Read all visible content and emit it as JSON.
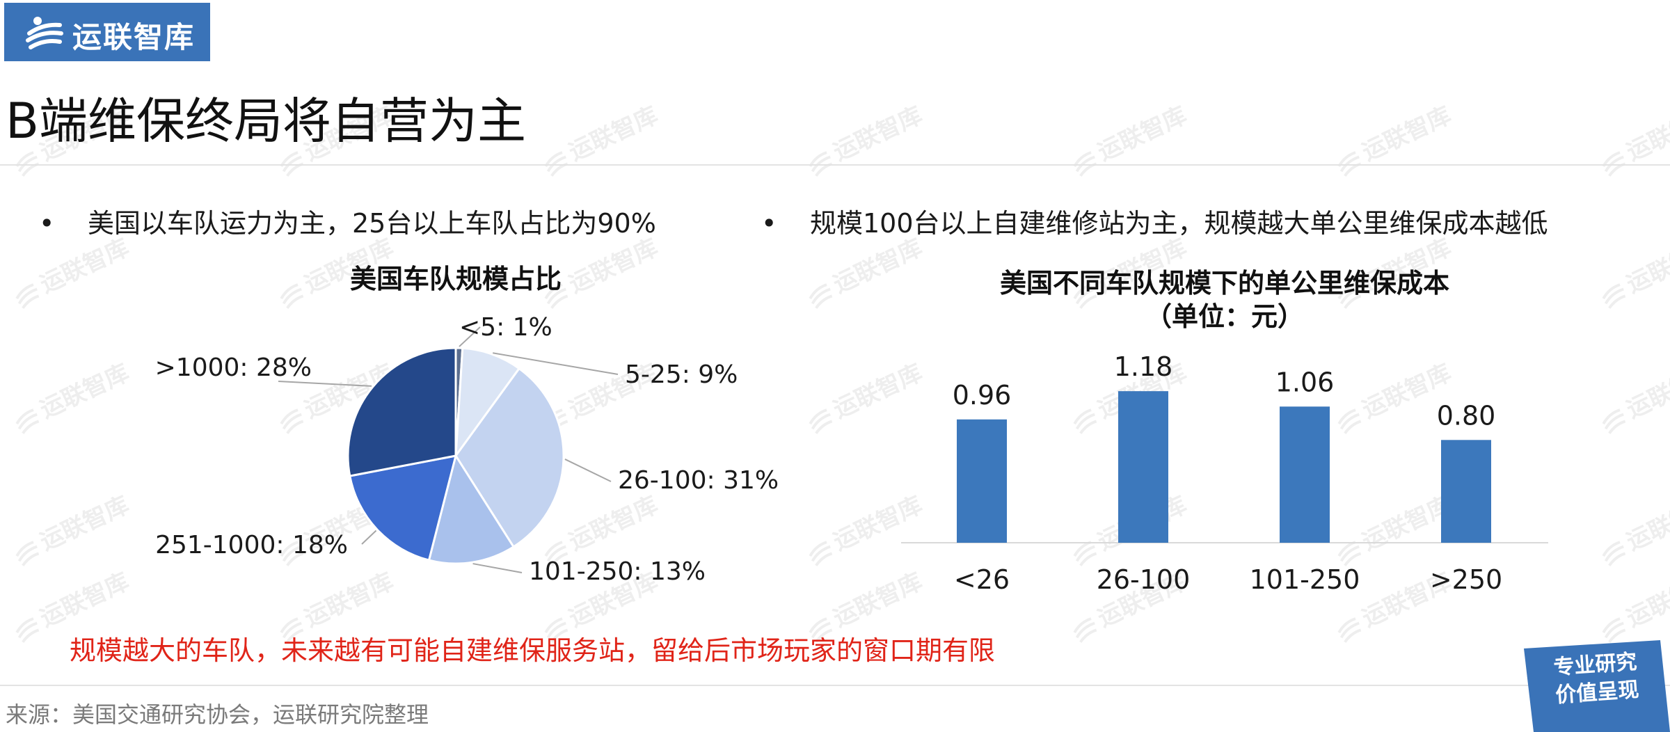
{
  "brand": {
    "name": "运联智库",
    "bg_color": "#3a73b8",
    "icon": "swirl-logo-icon"
  },
  "page": {
    "title": "B端维保终局将自营为主"
  },
  "left": {
    "bullet": "美国以车队运力为主，25台以上车队占比为90%"
  },
  "right": {
    "bullet": "规模100台以上自建维修站为主，规模越大单公里维保成本越低"
  },
  "chart_data": [
    {
      "type": "pie",
      "title": "美国车队规模占比",
      "slices": [
        {
          "label": "<5",
          "value": 1,
          "label_text": "<5: 1%",
          "color": "#5b6e8f"
        },
        {
          "label": "5-25",
          "value": 9,
          "label_text": "5-25: 9%",
          "color": "#dbe5f5"
        },
        {
          "label": "26-100",
          "value": 31,
          "label_text": "26-100: 31%",
          "color": "#c3d3f0"
        },
        {
          "label": "101-250",
          "value": 13,
          "label_text": "101-250: 13%",
          "color": "#a9c1ec"
        },
        {
          "label": "251-1000",
          "value": 18,
          "label_text": "251-1000: 18%",
          "color": "#3c6bcf"
        },
        {
          "label": ">1000",
          "value": 28,
          "label_text": ">1000: 28%",
          "color": "#24488a"
        }
      ]
    },
    {
      "type": "bar",
      "title": "美国不同车队规模下的单公里维保成本",
      "subtitle": "（单位：元）",
      "categories": [
        "<26",
        "26-100",
        "101-250",
        ">250"
      ],
      "values": [
        0.96,
        1.18,
        1.06,
        0.8
      ],
      "value_labels": [
        "0.96",
        "1.18",
        "1.06",
        "0.80"
      ],
      "ylim": [
        0,
        1.3
      ],
      "bar_color": "#3c78bc",
      "grid": false
    }
  ],
  "conclusion": "规模越大的车队，未来越有可能自建维保服务站，留给后市场玩家的窗口期有限",
  "source": "来源：美国交通研究协会，运联研究院整理",
  "badge": {
    "line1": "专业研究",
    "line2": "价值呈现",
    "color": "#3a73b8"
  }
}
